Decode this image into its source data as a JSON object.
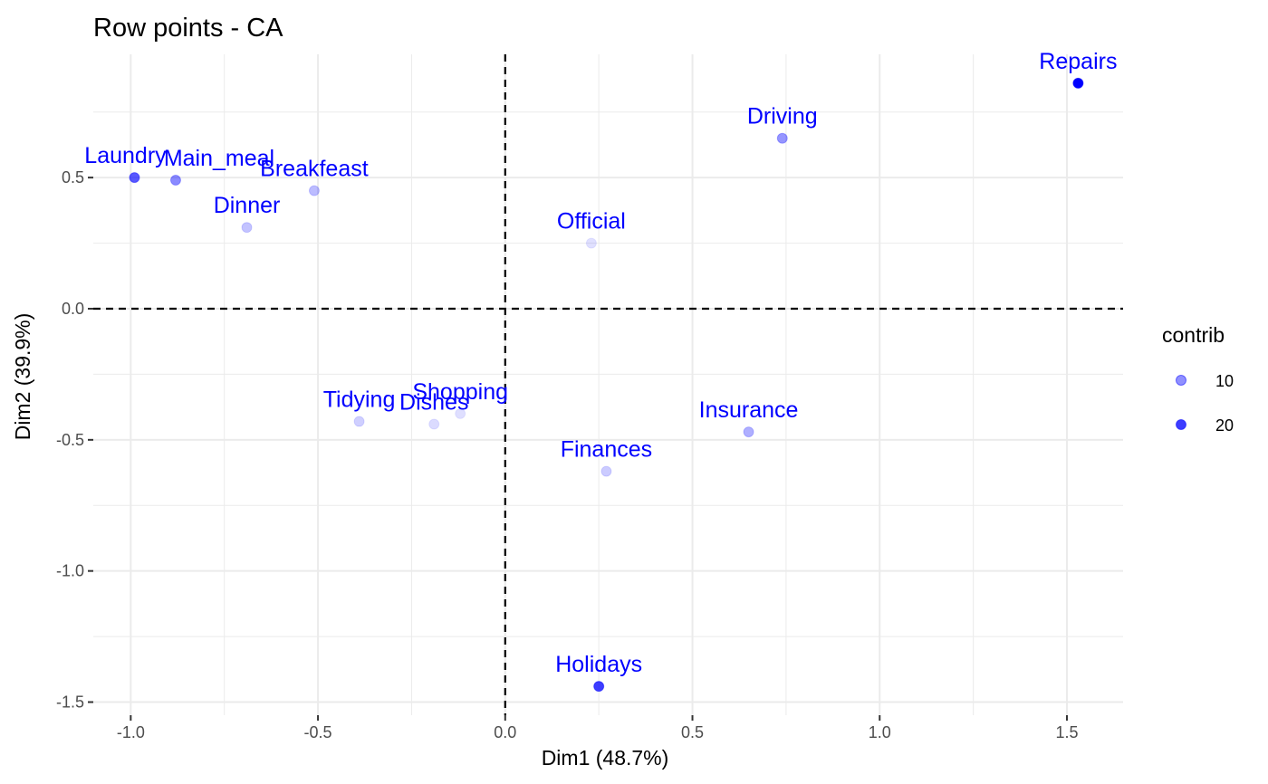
{
  "chart_data": {
    "type": "scatter",
    "title": "Row points - CA",
    "xlabel": "Dim1 (48.7%)",
    "ylabel": "Dim2 (39.9%)",
    "xlim": [
      -1.1,
      1.65
    ],
    "ylim": [
      -1.55,
      0.97
    ],
    "x_ticks": [
      -1.0,
      -0.5,
      0.0,
      0.5,
      1.0,
      1.5
    ],
    "x_tick_labels": [
      "-1.0",
      "-0.5",
      "0.0",
      "0.5",
      "1.0",
      "1.5"
    ],
    "y_ticks": [
      -1.5,
      -1.0,
      -0.5,
      0.0,
      0.5
    ],
    "y_tick_labels": [
      "-1.5",
      "-1.0",
      "-0.5",
      "0.0",
      "0.5"
    ],
    "grid": true,
    "reference_lines": {
      "x": 0,
      "y": 0,
      "style": "dashed"
    },
    "point_color": "#0000FF",
    "label_color": "#0000FF",
    "legend": {
      "title": "contrib",
      "position": "right",
      "entries": [
        {
          "label": "10",
          "contrib": 10
        },
        {
          "label": "20",
          "contrib": 20
        }
      ]
    },
    "points": [
      {
        "name": "Laundry",
        "x": -0.99,
        "y": 0.5,
        "contrib": 18.3
      },
      {
        "name": "Main_meal",
        "x": -0.88,
        "y": 0.49,
        "contrib": 12.3
      },
      {
        "name": "Dinner",
        "x": -0.69,
        "y": 0.31,
        "contrib": 5.4
      },
      {
        "name": "Breakfeast",
        "x": -0.51,
        "y": 0.45,
        "contrib": 6.3
      },
      {
        "name": "Tidying",
        "x": -0.39,
        "y": -0.43,
        "contrib": 4.0
      },
      {
        "name": "Dishes",
        "x": -0.19,
        "y": -0.44,
        "contrib": 2.6
      },
      {
        "name": "Shopping",
        "x": -0.12,
        "y": -0.4,
        "contrib": 2.1
      },
      {
        "name": "Official",
        "x": 0.23,
        "y": 0.25,
        "contrib": 1.9
      },
      {
        "name": "Driving",
        "x": 0.74,
        "y": 0.65,
        "contrib": 11.0
      },
      {
        "name": "Finances",
        "x": 0.27,
        "y": -0.62,
        "contrib": 4.5
      },
      {
        "name": "Insurance",
        "x": 0.65,
        "y": -0.47,
        "contrib": 7.8
      },
      {
        "name": "Repairs",
        "x": 1.53,
        "y": 0.86,
        "contrib": 28.9
      },
      {
        "name": "Holidays",
        "x": 0.25,
        "y": -1.44,
        "contrib": 21.6
      }
    ]
  }
}
